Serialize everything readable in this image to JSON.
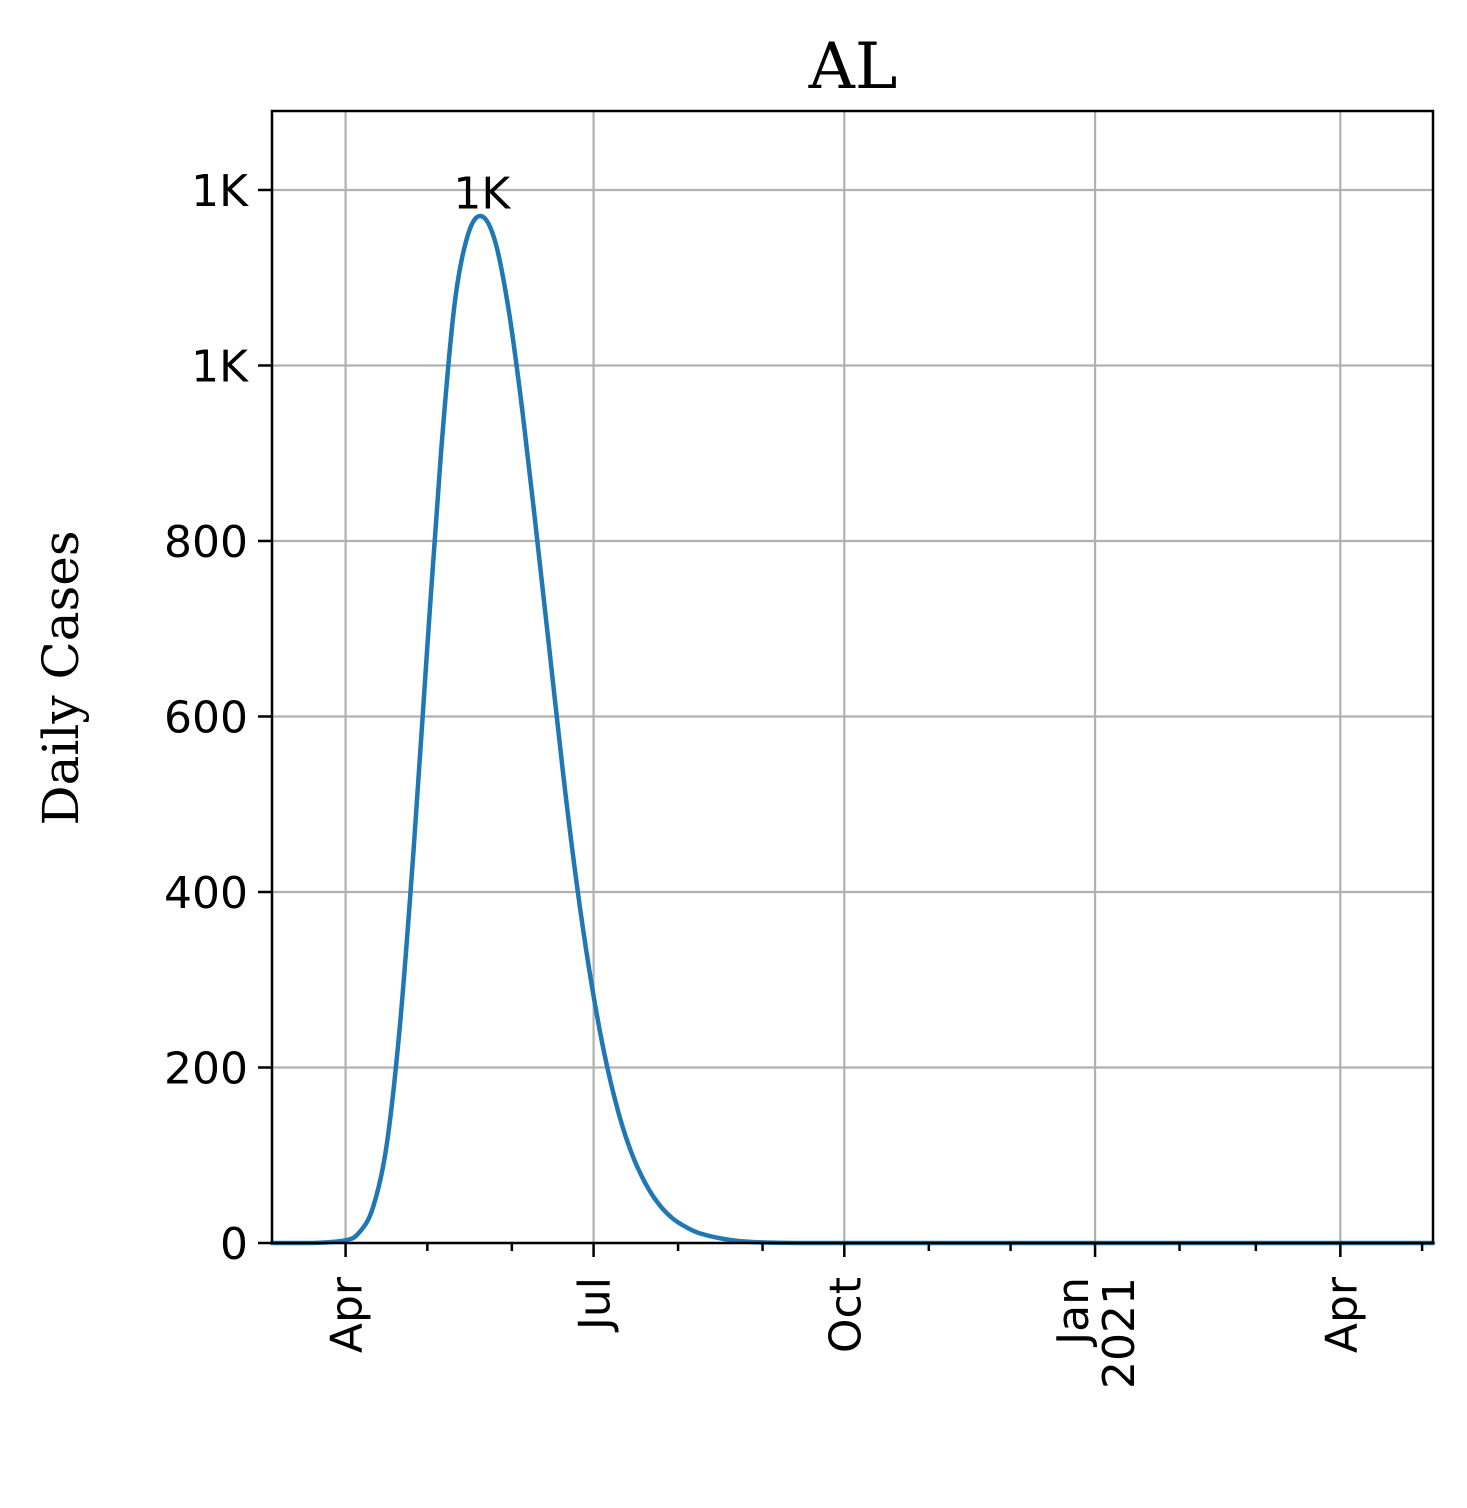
{
  "chart_data": {
    "type": "line",
    "title": "AL",
    "xlabel": "",
    "ylabel": "Daily Cases",
    "x_axis_type": "date",
    "xlim": [
      "2020-03-05",
      "2021-05-05"
    ],
    "ylim": [
      0,
      1290
    ],
    "x_ticks": [
      {
        "date": "2020-04-01",
        "label": "Apr"
      },
      {
        "date": "2020-07-01",
        "label": "Jul"
      },
      {
        "date": "2020-10-01",
        "label": "Oct"
      },
      {
        "date": "2021-01-01",
        "label": "Jan\n2021"
      },
      {
        "date": "2021-04-01",
        "label": "Apr"
      }
    ],
    "x_minor_ticks": [
      "2020-03-01",
      "2020-05-01",
      "2020-06-01",
      "2020-08-01",
      "2020-09-01",
      "2020-11-01",
      "2020-12-01",
      "2021-02-01",
      "2021-03-01",
      "2021-05-01"
    ],
    "y_ticks": [
      {
        "value": 0,
        "label": "0"
      },
      {
        "value": 200,
        "label": "200"
      },
      {
        "value": 400,
        "label": "400"
      },
      {
        "value": 600,
        "label": "600"
      },
      {
        "value": 800,
        "label": "800"
      },
      {
        "value": 1000,
        "label": "1K"
      },
      {
        "value": 1200,
        "label": "1K"
      }
    ],
    "grid": true,
    "series": [
      {
        "color": "#1f77b4",
        "points": [
          [
            "2020-03-05",
            0
          ],
          [
            "2020-03-20",
            0
          ],
          [
            "2020-04-01",
            3
          ],
          [
            "2020-04-06",
            12
          ],
          [
            "2020-04-11",
            40
          ],
          [
            "2020-04-16",
            110
          ],
          [
            "2020-04-21",
            250
          ],
          [
            "2020-04-26",
            450
          ],
          [
            "2020-05-01",
            680
          ],
          [
            "2020-05-06",
            900
          ],
          [
            "2020-05-11",
            1070
          ],
          [
            "2020-05-16",
            1150
          ],
          [
            "2020-05-21",
            1170
          ],
          [
            "2020-05-26",
            1140
          ],
          [
            "2020-05-31",
            1060
          ],
          [
            "2020-06-05",
            945
          ],
          [
            "2020-06-10",
            810
          ],
          [
            "2020-06-15",
            670
          ],
          [
            "2020-06-20",
            530
          ],
          [
            "2020-06-25",
            405
          ],
          [
            "2020-06-30",
            300
          ],
          [
            "2020-07-05",
            215
          ],
          [
            "2020-07-10",
            150
          ],
          [
            "2020-07-15",
            102
          ],
          [
            "2020-07-20",
            68
          ],
          [
            "2020-07-25",
            44
          ],
          [
            "2020-07-30",
            28
          ],
          [
            "2020-08-04",
            18
          ],
          [
            "2020-08-09",
            11
          ],
          [
            "2020-08-19",
            4
          ],
          [
            "2020-08-29",
            1
          ],
          [
            "2020-09-15",
            0
          ],
          [
            "2020-10-01",
            0
          ],
          [
            "2021-05-05",
            0
          ]
        ]
      }
    ],
    "annotations": [
      {
        "text": "1K",
        "date": "2020-05-21",
        "value": 1170
      }
    ]
  }
}
